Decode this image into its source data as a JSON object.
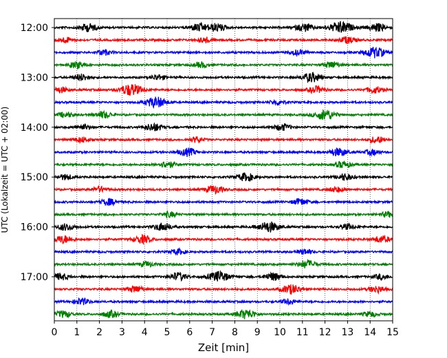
{
  "chart_data": {
    "type": "line",
    "xlabel": "Zeit  [min]",
    "ylabel": "UTC (Lokalzeit = UTC + 02:00)",
    "xlim": [
      0,
      15
    ],
    "x_ticks": [
      "0",
      "1",
      "2",
      "3",
      "4",
      "5",
      "6",
      "7",
      "8",
      "9",
      "10",
      "11",
      "12",
      "13",
      "14",
      "15"
    ],
    "y_tick_labels": [
      "12:00",
      "13:00",
      "14:00",
      "15:00",
      "16:00",
      "17:00"
    ],
    "grid": "vertical-dotted",
    "trace_interval_minutes": 15,
    "colors": [
      "#000000",
      "#ff0000",
      "#0000ff",
      "#008000"
    ],
    "traces": [
      {
        "start": "12:00",
        "color": "#000000",
        "events": [
          [
            1.5,
            0.6
          ],
          [
            6.4,
            0.6
          ],
          [
            7.2,
            0.6
          ],
          [
            11.1,
            0.6
          ],
          [
            12.7,
            0.9
          ],
          [
            14.3,
            0.6
          ]
        ]
      },
      {
        "start": "12:15",
        "color": "#ff0000",
        "events": [
          [
            0.5,
            0.4
          ],
          [
            6.7,
            0.4
          ],
          [
            13.0,
            0.5
          ]
        ]
      },
      {
        "start": "12:30",
        "color": "#0000ff",
        "events": [
          [
            2.2,
            0.4
          ],
          [
            10.8,
            0.4
          ],
          [
            14.2,
            0.8
          ]
        ]
      },
      {
        "start": "12:45",
        "color": "#008000",
        "events": [
          [
            1.0,
            0.5
          ],
          [
            6.5,
            0.4
          ],
          [
            12.3,
            0.5
          ]
        ]
      },
      {
        "start": "13:00",
        "color": "#000000",
        "events": [
          [
            1.2,
            0.5
          ],
          [
            4.6,
            0.4
          ],
          [
            11.4,
            0.7
          ]
        ]
      },
      {
        "start": "13:15",
        "color": "#ff0000",
        "events": [
          [
            0.3,
            0.4
          ],
          [
            3.4,
            0.9
          ],
          [
            11.6,
            0.5
          ],
          [
            14.2,
            0.5
          ]
        ]
      },
      {
        "start": "13:30",
        "color": "#0000ff",
        "events": [
          [
            4.5,
            0.8
          ],
          [
            9.9,
            0.4
          ]
        ]
      },
      {
        "start": "13:45",
        "color": "#008000",
        "events": [
          [
            0.5,
            0.4
          ],
          [
            2.2,
            0.5
          ],
          [
            12.0,
            0.8
          ]
        ]
      },
      {
        "start": "14:00",
        "color": "#000000",
        "events": [
          [
            1.3,
            0.4
          ],
          [
            4.4,
            0.6
          ],
          [
            10.1,
            0.5
          ]
        ]
      },
      {
        "start": "14:15",
        "color": "#ff0000",
        "events": [
          [
            1.2,
            0.4
          ],
          [
            6.3,
            0.4
          ],
          [
            14.3,
            0.5
          ]
        ]
      },
      {
        "start": "14:30",
        "color": "#0000ff",
        "events": [
          [
            5.9,
            0.6
          ],
          [
            12.6,
            0.6
          ],
          [
            14.1,
            0.4
          ]
        ]
      },
      {
        "start": "14:45",
        "color": "#008000",
        "events": [
          [
            5.0,
            0.5
          ],
          [
            12.8,
            0.5
          ]
        ]
      },
      {
        "start": "15:00",
        "color": "#000000",
        "events": [
          [
            0.5,
            0.4
          ],
          [
            8.5,
            0.6
          ],
          [
            12.9,
            0.5
          ]
        ]
      },
      {
        "start": "15:15",
        "color": "#ff0000",
        "events": [
          [
            2.0,
            0.4
          ],
          [
            7.1,
            0.6
          ],
          [
            12.5,
            0.4
          ]
        ]
      },
      {
        "start": "15:30",
        "color": "#0000ff",
        "events": [
          [
            2.4,
            0.5
          ],
          [
            10.9,
            0.5
          ]
        ]
      },
      {
        "start": "15:45",
        "color": "#008000",
        "events": [
          [
            5.1,
            0.4
          ],
          [
            14.8,
            0.4
          ]
        ]
      },
      {
        "start": "16:00",
        "color": "#000000",
        "events": [
          [
            0.5,
            0.5
          ],
          [
            4.8,
            0.6
          ],
          [
            9.5,
            0.8
          ],
          [
            13.0,
            0.4
          ]
        ]
      },
      {
        "start": "16:15",
        "color": "#ff0000",
        "events": [
          [
            0.4,
            0.6
          ],
          [
            3.9,
            0.6
          ],
          [
            14.5,
            0.5
          ]
        ]
      },
      {
        "start": "16:30",
        "color": "#0000ff",
        "events": [
          [
            5.5,
            0.4
          ],
          [
            11.1,
            0.4
          ]
        ]
      },
      {
        "start": "16:45",
        "color": "#008000",
        "events": [
          [
            4.1,
            0.4
          ],
          [
            11.2,
            0.6
          ]
        ]
      },
      {
        "start": "17:00",
        "color": "#000000",
        "events": [
          [
            0.3,
            0.5
          ],
          [
            5.5,
            0.6
          ],
          [
            7.3,
            0.8
          ],
          [
            9.7,
            0.6
          ],
          [
            14.5,
            0.4
          ]
        ]
      },
      {
        "start": "17:15",
        "color": "#ff0000",
        "events": [
          [
            3.6,
            0.5
          ],
          [
            10.5,
            0.7
          ],
          [
            14.3,
            0.5
          ]
        ]
      },
      {
        "start": "17:30",
        "color": "#0000ff",
        "events": [
          [
            1.2,
            0.5
          ],
          [
            10.4,
            0.4
          ]
        ]
      },
      {
        "start": "17:45",
        "color": "#008000",
        "events": [
          [
            0.4,
            0.5
          ],
          [
            2.5,
            0.5
          ],
          [
            8.5,
            0.7
          ],
          [
            14.0,
            0.4
          ]
        ]
      }
    ]
  }
}
